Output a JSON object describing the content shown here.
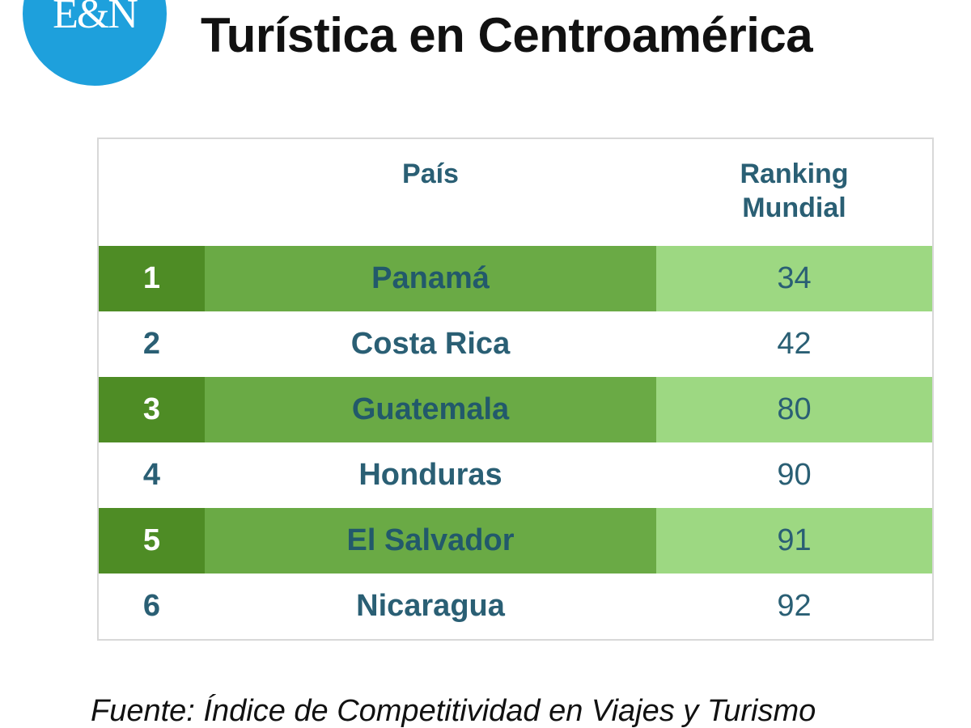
{
  "logo": {
    "text": "E&N"
  },
  "title": "Turística en Centroamérica",
  "table": {
    "headers": {
      "country": "País",
      "ranking": "Ranking Mundial"
    },
    "rows": [
      {
        "position": "1",
        "country": "Panamá",
        "ranking": "34"
      },
      {
        "position": "2",
        "country": "Costa Rica",
        "ranking": "42"
      },
      {
        "position": "3",
        "country": "Guatemala",
        "ranking": "80"
      },
      {
        "position": "4",
        "country": "Honduras",
        "ranking": "90"
      },
      {
        "position": "5",
        "country": "El Salvador",
        "ranking": "91"
      },
      {
        "position": "6",
        "country": "Nicaragua",
        "ranking": "92"
      }
    ]
  },
  "source": "Fuente: Índice de Competitividad en Viajes y Turismo",
  "colors": {
    "logo_blue": "#1ea0dc",
    "text_teal": "#2a5f74",
    "green_dark": "#4e8c25",
    "green_mid": "#6aaa45",
    "green_light": "#9dd882"
  }
}
